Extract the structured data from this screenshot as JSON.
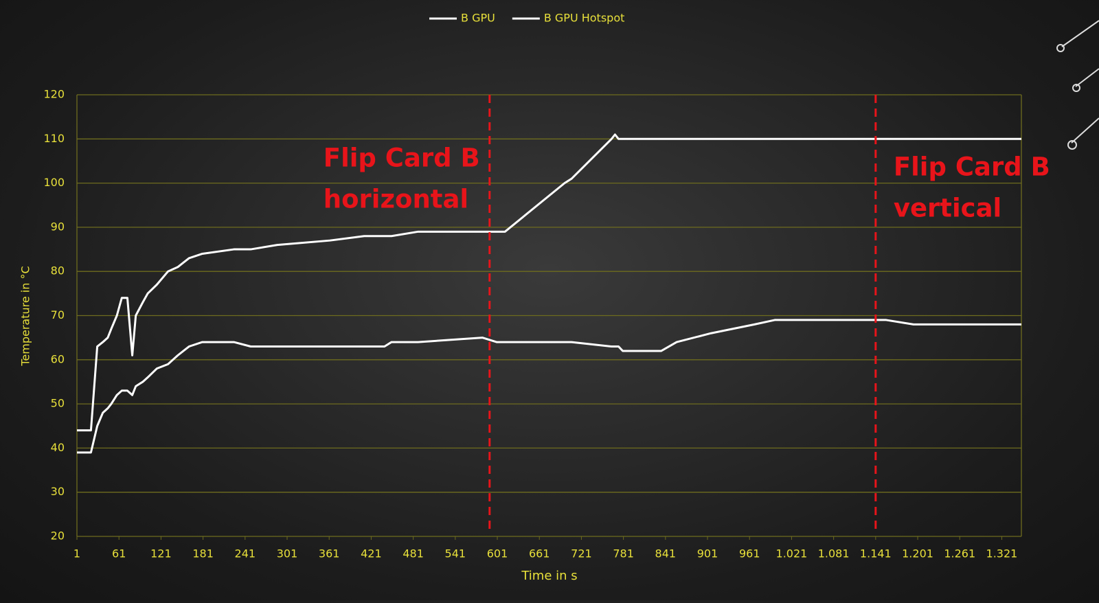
{
  "chart_data": {
    "type": "line",
    "x_label": "Time in s",
    "y_label": "Temperature in °C",
    "x": [
      1,
      21,
      30,
      38,
      45,
      50,
      58,
      65,
      73,
      80,
      85,
      95,
      102,
      115,
      131,
      145,
      153,
      161,
      180,
      225,
      249,
      287,
      362,
      411,
      440,
      450,
      488,
      580,
      600,
      612,
      697,
      707,
      764,
      769,
      774,
      780,
      835,
      857,
      906,
      968,
      997,
      1156,
      1195,
      1349
    ],
    "series": [
      {
        "name": "B GPU",
        "color": "#ffffff",
        "values": [
          39,
          39,
          45,
          48,
          49,
          50,
          52,
          53,
          53,
          52,
          54,
          55,
          56,
          58,
          59,
          61,
          62,
          63,
          64,
          64,
          63,
          63,
          63,
          63,
          63,
          64,
          64,
          65,
          64,
          64,
          64,
          64,
          63,
          63,
          63,
          62,
          62,
          64,
          66,
          68,
          69,
          69,
          68,
          68
        ]
      },
      {
        "name": "B GPU Hotspot",
        "color": "#ffffff",
        "values": [
          44,
          44,
          63,
          64,
          65,
          67,
          70,
          74,
          74,
          61,
          70,
          73,
          75,
          77,
          80,
          81,
          82,
          83,
          84,
          85,
          85,
          86,
          87,
          88,
          88,
          88,
          89,
          89,
          89,
          89,
          100,
          101,
          110,
          111,
          110,
          110,
          110,
          110,
          110,
          110,
          110,
          110,
          110,
          110
        ]
      }
    ],
    "xlim": [
      1,
      1349
    ],
    "ylim": [
      20,
      120
    ],
    "xticks": [
      1,
      61,
      121,
      181,
      241,
      301,
      361,
      421,
      481,
      541,
      601,
      661,
      721,
      781,
      841,
      901,
      961,
      {
        "value": 1021,
        "label": "1.021"
      },
      {
        "value": 1081,
        "label": "1.081"
      },
      {
        "value": 1141,
        "label": "1.141"
      },
      {
        "value": 1201,
        "label": "1.201"
      },
      {
        "value": 1261,
        "label": "1.261"
      },
      {
        "value": 1321,
        "label": "1.321"
      }
    ],
    "yticks": [
      20,
      30,
      40,
      50,
      60,
      70,
      80,
      90,
      100,
      110,
      120
    ],
    "grid": true,
    "legend": "top",
    "annotations": [
      {
        "x": 590,
        "color": "#e8141a",
        "lines": [
          "Flip Card B",
          "horizontal"
        ]
      },
      {
        "x": 1141,
        "color": "#e8141a",
        "lines": [
          "Flip Card B",
          "vertical"
        ]
      }
    ]
  }
}
